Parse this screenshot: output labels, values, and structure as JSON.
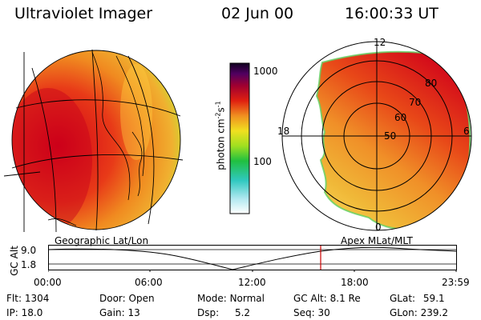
{
  "header": {
    "instrument": "Ultraviolet Imager",
    "date": "02 Jun 00",
    "time": "16:00:33 UT"
  },
  "colorbar": {
    "unit": "photon cm",
    "unit_sup1": "-2",
    "unit_mid": "s",
    "unit_sup2": "-1",
    "tick_high": "1000",
    "tick_mid": "100",
    "scale": "log"
  },
  "polar_plot": {
    "mlt_labels": [
      "12",
      "18",
      "6",
      "0"
    ],
    "mlat_labels": [
      "80",
      "70",
      "60",
      "50"
    ]
  },
  "panels": {
    "left_label": "Geographic Lat/Lon",
    "right_label": "Apex MLat/MLT"
  },
  "altitude_plot": {
    "ylabel": "GC Alt",
    "y_ticks": [
      "9.0",
      "1.8"
    ],
    "x_ticks": [
      "00:00",
      "06:00",
      "12:00",
      "18:00",
      "23:59"
    ],
    "marker_color": "#cc0000"
  },
  "info": {
    "flt_label": "Flt:",
    "flt_value": "1304",
    "ip_label": "IP:",
    "ip_value": "18.0",
    "door_label": "Door:",
    "door_value": "Open",
    "gain_label": "Gain:",
    "gain_value": "13",
    "mode_label": "Mode:",
    "mode_value": "Normal",
    "dsp_label": "Dsp:",
    "dsp_value": "5.2",
    "gcalt_label": "GC Alt:",
    "gcalt_value": "8.1 Re",
    "seq_label": "Seq:",
    "seq_value": "30",
    "glat_label": "GLat:",
    "glat_value": "59.1",
    "glon_label": "GLon:",
    "glon_value": "239.2"
  }
}
